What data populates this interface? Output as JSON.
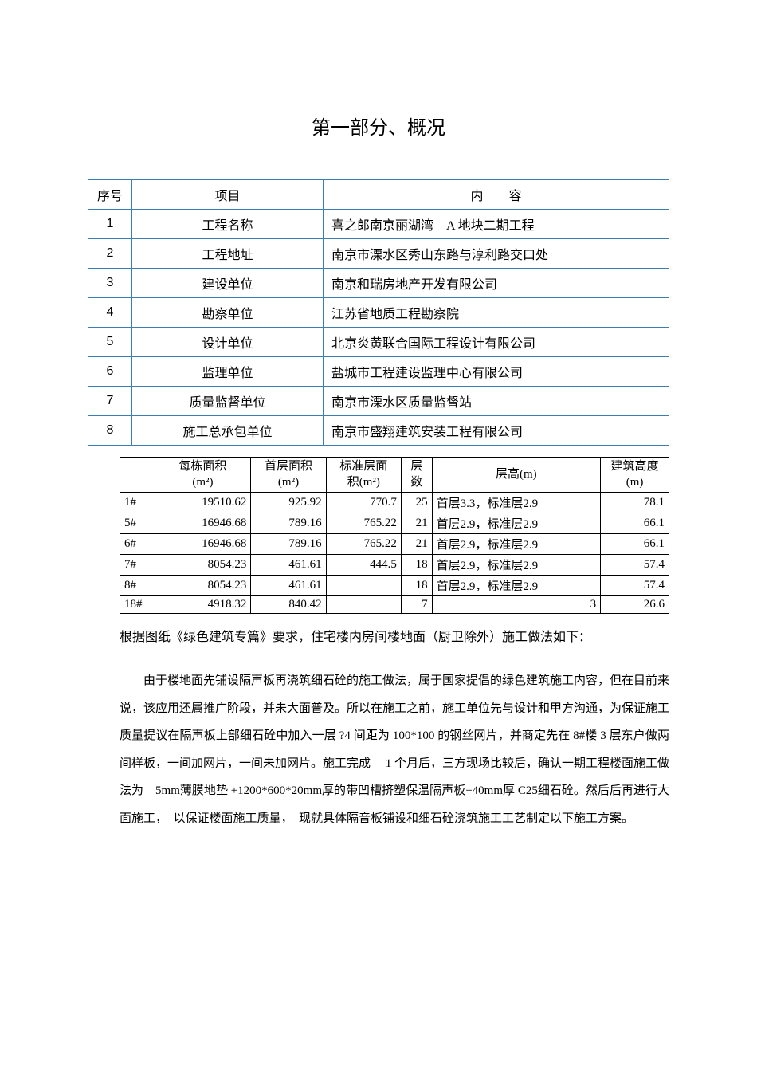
{
  "title": "第一部分、概况",
  "info_table": {
    "header": {
      "seq": "序号",
      "item": "项目",
      "content": "内　　容"
    },
    "rows": [
      {
        "seq": "1",
        "item": "工程名称",
        "content": "喜之郎南京丽湖湾　A 地块二期工程"
      },
      {
        "seq": "2",
        "item": "工程地址",
        "content": "南京市溧水区秀山东路与淳利路交口处"
      },
      {
        "seq": "3",
        "item": "建设单位",
        "content": "南京和瑞房地产开发有限公司"
      },
      {
        "seq": "4",
        "item": "勘察单位",
        "content": "江苏省地质工程勘察院"
      },
      {
        "seq": "5",
        "item": "设计单位",
        "content": "北京炎黄联合国际工程设计有限公司"
      },
      {
        "seq": "6",
        "item": "监理单位",
        "content": "盐城市工程建设监理中心有限公司"
      },
      {
        "seq": "7",
        "item": "质量监督单位",
        "content": "南京市溧水区质量监督站"
      },
      {
        "seq": "8",
        "item": "施工总承包单位",
        "content": "南京市盛翔建筑安装工程有限公司"
      }
    ]
  },
  "data_table": {
    "headers": {
      "row_label": "",
      "c1": "每栋面积(m²)",
      "c2": "首层面积(m²)",
      "c3": "标准层面积(m²)",
      "c4": "层数",
      "c5": "层高(m)",
      "c6": "建筑高度(m)"
    },
    "rows": [
      {
        "label": "1#",
        "c1": "19510.62",
        "c2": "925.92",
        "c3": "770.7",
        "c4": "25",
        "c5": "首层3.3，标准层2.9",
        "c6": "78.1"
      },
      {
        "label": "5#",
        "c1": "16946.68",
        "c2": "789.16",
        "c3": "765.22",
        "c4": "21",
        "c5": "首层2.9，标准层2.9",
        "c6": "66.1"
      },
      {
        "label": "6#",
        "c1": "16946.68",
        "c2": "789.16",
        "c3": "765.22",
        "c4": "21",
        "c5": "首层2.9，标准层2.9",
        "c6": "66.1"
      },
      {
        "label": "7#",
        "c1": "8054.23",
        "c2": "461.61",
        "c3": "444.5",
        "c4": "18",
        "c5": "首层2.9，标准层2.9",
        "c6": "57.4"
      },
      {
        "label": "8#",
        "c1": "8054.23",
        "c2": "461.61",
        "c3": "",
        "c4": "18",
        "c5": "首层2.9，标准层2.9",
        "c6": "57.4"
      },
      {
        "label": "18#",
        "c1": "4918.32",
        "c2": "840.42",
        "c3": "",
        "c4": "7",
        "c5": "3",
        "c5_align": "right",
        "c6": "26.6"
      }
    ]
  },
  "intro_text": "根据图纸《绿色建筑专篇》要求，住宅楼内房间楼地面（厨卫除外）施工做法如下：",
  "body_text": "由于楼地面先铺设隔声板再浇筑细石砼的施工做法，属于国家提倡的绿色建筑施工内容，但在目前来说，该应用还属推广阶段，并未大面普及。所以在施工之前，施工单位先与设计和甲方沟通，为保证施工质量提议在隔声板上部细石砼中加入一层 ?4 间距为 100*100 的钢丝网片，并商定先在 8#楼 3 层东户做两间样板，一间加网片，一间未加网片。施工完成　 1 个月后，三方现场比较后，确认一期工程楼面施工做法为　5mm薄膜地垫 +1200*600*20mm厚的带凹槽挤塑保温隔声板+40mm厚 C25细石砼。然后后再进行大面施工，　以保证楼面施工质量，　现就具体隔音板铺设和细石砼浇筑施工工艺制定以下施工方案。"
}
